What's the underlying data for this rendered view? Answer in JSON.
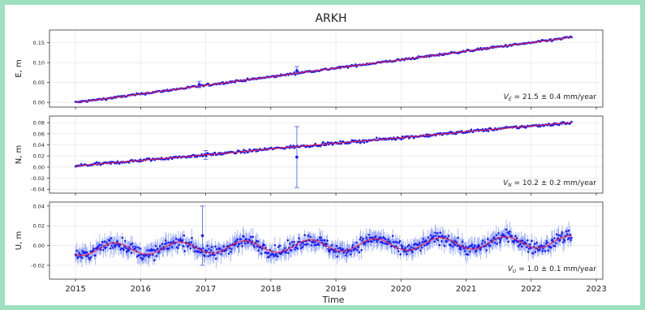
{
  "chart_data": {
    "type": "scatter",
    "title": "ARKH",
    "xlabel": "Time",
    "x_ticks": [
      "2015",
      "2016",
      "2017",
      "2018",
      "2019",
      "2020",
      "2021",
      "2022",
      "2023"
    ],
    "xlim": [
      2014.6,
      2023.1
    ],
    "grid": true,
    "colors": {
      "points": "#1a1aff",
      "errorbars": "#3b5bff",
      "trend": "#ff2020",
      "grid": "#e6e6e6"
    },
    "panels": [
      {
        "ylabel": "E, m",
        "ylim": [
          -0.012,
          0.182
        ],
        "y_ticks": [
          "0.00",
          "0.05",
          "0.10",
          "0.15"
        ],
        "y_tick_values": [
          0.0,
          0.05,
          0.1,
          0.15
        ],
        "velocity_label": "V_E = 21.5 ± 0.4 mm/year",
        "velocity_symbol": "V",
        "velocity_subscript": "E",
        "velocity_text": " = 21.5 ± 0.4 mm/year",
        "series": {
          "x": [
            2015.0,
            2015.5,
            2016.0,
            2016.5,
            2017.0,
            2017.5,
            2018.0,
            2018.5,
            2019.0,
            2019.5,
            2020.0,
            2020.5,
            2021.0,
            2021.5,
            2022.0,
            2022.5,
            2022.62
          ],
          "y": [
            0.0,
            0.01,
            0.021,
            0.032,
            0.043,
            0.054,
            0.064,
            0.076,
            0.086,
            0.097,
            0.107,
            0.118,
            0.129,
            0.14,
            0.15,
            0.161,
            0.165
          ],
          "noise": 0.0025
        },
        "outliers": [
          {
            "x": 2018.4,
            "y": 0.08,
            "err": 0.01
          },
          {
            "x": 2016.9,
            "y": 0.045,
            "err": 0.008
          }
        ]
      },
      {
        "ylabel": "N, m",
        "ylim": [
          -0.047,
          0.092
        ],
        "y_ticks": [
          "-0.04",
          "-0.02",
          "0.00",
          "0.02",
          "0.04",
          "0.06",
          "0.08"
        ],
        "y_tick_values": [
          -0.04,
          -0.02,
          0.0,
          0.02,
          0.04,
          0.06,
          0.08
        ],
        "velocity_label": "V_N = 10.2 ± 0.2 mm/year",
        "velocity_symbol": "V",
        "velocity_subscript": "N",
        "velocity_text": " = 10.2 ± 0.2 mm/year",
        "series": {
          "x": [
            2015.0,
            2015.5,
            2016.0,
            2016.5,
            2017.0,
            2017.5,
            2018.0,
            2018.5,
            2019.0,
            2019.5,
            2020.0,
            2020.5,
            2021.0,
            2021.5,
            2022.0,
            2022.5,
            2022.62
          ],
          "y": [
            0.002,
            0.007,
            0.012,
            0.017,
            0.022,
            0.027,
            0.033,
            0.038,
            0.043,
            0.048,
            0.053,
            0.058,
            0.064,
            0.069,
            0.074,
            0.079,
            0.08
          ],
          "noise": 0.0025
        },
        "outliers": [
          {
            "x": 2018.4,
            "y": 0.018,
            "err": 0.055
          },
          {
            "x": 2017.0,
            "y": 0.022,
            "err": 0.008
          }
        ]
      },
      {
        "ylabel": "U, m",
        "ylim": [
          -0.034,
          0.044
        ],
        "y_ticks": [
          "-0.02",
          "0.00",
          "0.02",
          "0.04"
        ],
        "y_tick_values": [
          -0.02,
          0.0,
          0.02,
          0.04
        ],
        "velocity_label": "V_U = 1.0 ± 0.1 mm/year",
        "velocity_symbol": "V",
        "velocity_subscript": "U",
        "velocity_text": " = 1.0 ± 0.1 mm/year",
        "series": {
          "x": [
            2015.0,
            2022.62
          ],
          "y": [
            -0.004,
            0.004
          ],
          "seasonal_amplitude": 0.006,
          "noise": 0.006
        },
        "outliers": [
          {
            "x": 2016.95,
            "y": 0.01,
            "err": 0.03
          }
        ]
      }
    ]
  }
}
